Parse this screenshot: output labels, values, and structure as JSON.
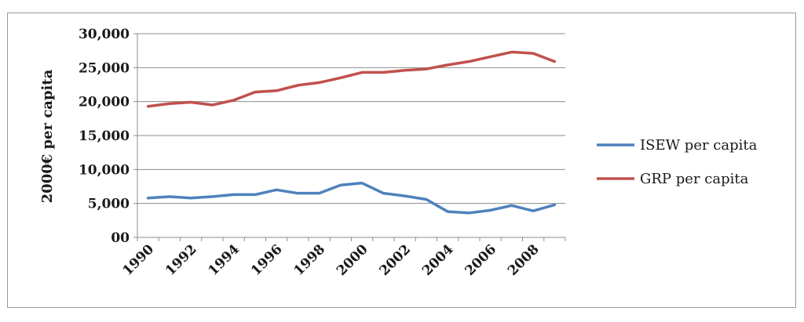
{
  "chart_data": {
    "type": "line",
    "ylabel": "2000€ per capita",
    "y_ticks": [
      "00",
      "5,000",
      "10,000",
      "15,000",
      "20,000",
      "25,000",
      "30,000"
    ],
    "ylim": [
      0,
      30000
    ],
    "x_ticks": [
      "1990",
      "1992",
      "1994",
      "1996",
      "1998",
      "2000",
      "2002",
      "2004",
      "2006",
      "2008"
    ],
    "x": [
      1990,
      1991,
      1992,
      1993,
      1994,
      1995,
      1996,
      1997,
      1998,
      1999,
      2000,
      2001,
      2002,
      2003,
      2004,
      2005,
      2006,
      2007,
      2008,
      2009
    ],
    "grid": true,
    "legend_position": "right",
    "series": [
      {
        "name": "ISEW per capita",
        "color": "#4f81bd",
        "values": [
          5800,
          6000,
          5800,
          6000,
          6300,
          6300,
          7000,
          6500,
          6500,
          7700,
          8000,
          6500,
          6100,
          5600,
          3800,
          3600,
          4000,
          4700,
          3900,
          4800
        ]
      },
      {
        "name": "GRP per capita",
        "color": "#c0504d",
        "values": [
          19300,
          19700,
          19900,
          19500,
          20200,
          21400,
          21600,
          22400,
          22800,
          23500,
          24300,
          24300,
          24600,
          24800,
          25400,
          25900,
          26600,
          27300,
          27100,
          25900
        ]
      }
    ]
  }
}
